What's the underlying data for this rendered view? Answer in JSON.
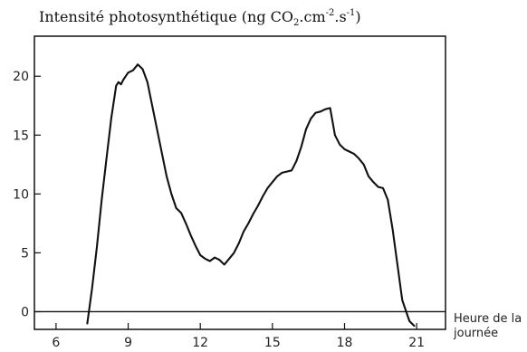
{
  "chart_data": {
    "type": "line",
    "title": {
      "prefix": "Intensité photosynthétique (ng CO",
      "sub": "2",
      "middle": ".cm",
      "sup1": "-2",
      "mid2": ".s",
      "sup2": "-1",
      "suffix": ")"
    },
    "xlabel_line1": "Heure de la",
    "xlabel_line2": "journée",
    "xlim": [
      5.1,
      22.2
    ],
    "ylim": [
      -1.5,
      23.4
    ],
    "x_ticks": [
      6,
      9,
      12,
      15,
      18,
      21
    ],
    "y_ticks": [
      0,
      5,
      10,
      15,
      20
    ],
    "reference_line_y": 0,
    "grid": false,
    "series": [
      {
        "x": [
          7.3,
          7.5,
          7.7,
          7.9,
          8.1,
          8.3,
          8.5,
          8.6,
          8.7,
          8.8,
          9.0,
          9.2,
          9.4,
          9.6,
          9.8,
          10.0,
          10.2,
          10.4,
          10.6,
          10.8,
          11.0,
          11.2,
          11.4,
          11.6,
          11.8,
          12.0,
          12.2,
          12.4,
          12.6,
          12.8,
          13.0,
          13.2,
          13.4,
          13.6,
          13.8,
          14.0,
          14.2,
          14.4,
          14.6,
          14.8,
          15.0,
          15.2,
          15.4,
          15.6,
          15.8,
          16.0,
          16.2,
          16.4,
          16.6,
          16.8,
          17.0,
          17.2,
          17.4,
          17.6,
          17.8,
          18.0,
          18.2,
          18.4,
          18.6,
          18.8,
          19.0,
          19.2,
          19.4,
          19.6,
          19.8,
          20.0,
          20.2,
          20.4,
          20.6,
          20.7,
          20.8,
          20.9
        ],
        "y": [
          -1.0,
          2.0,
          5.5,
          9.5,
          13.0,
          16.5,
          19.2,
          19.5,
          19.3,
          19.7,
          20.3,
          20.5,
          21.0,
          20.6,
          19.5,
          17.5,
          15.5,
          13.5,
          11.5,
          10.0,
          8.8,
          8.4,
          7.5,
          6.5,
          5.6,
          4.8,
          4.5,
          4.3,
          4.6,
          4.4,
          4.0,
          4.5,
          5.0,
          5.8,
          6.8,
          7.5,
          8.3,
          9.0,
          9.8,
          10.5,
          11.0,
          11.5,
          11.8,
          11.9,
          12.0,
          12.8,
          14.0,
          15.5,
          16.4,
          16.9,
          17.0,
          17.2,
          17.3,
          15.0,
          14.2,
          13.8,
          13.6,
          13.4,
          13.0,
          12.5,
          11.5,
          11.0,
          10.6,
          10.5,
          9.5,
          7.0,
          4.0,
          1.0,
          -0.2,
          -0.8,
          -1.0,
          -1.2
        ]
      }
    ]
  }
}
